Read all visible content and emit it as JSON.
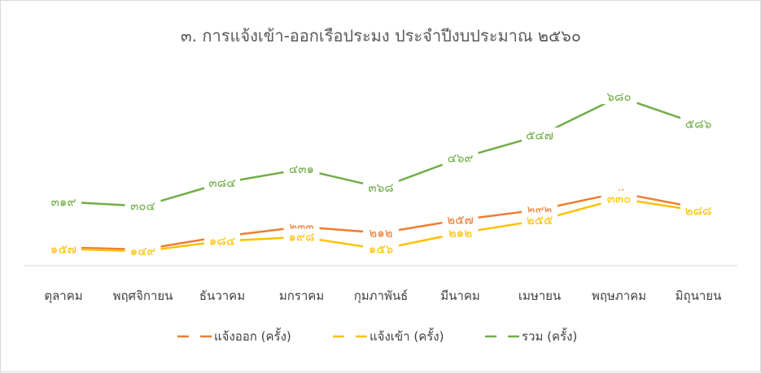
{
  "chart_data": {
    "type": "line",
    "title": "๓. การแจ้งเข้า-ออกเรือประมง ประจำปีงบประมาณ  ๒๕๖๐",
    "categories": [
      "ตุลาคม",
      "พฤศจิกายน",
      "ธันวาคม",
      "มกราคม",
      "กุมภาพันธ์",
      "มีนาคม",
      "เมษายน",
      "พฤษภาคม",
      "มิถุนายน"
    ],
    "series": [
      {
        "name": "แจ้งออก (ครั้ง)",
        "color": "#ed7d31",
        "values": [
          162,
          155,
          200,
          233,
          212,
          257,
          292,
          350,
          298
        ],
        "labels": [
          "๑๖๒",
          "๑๕๕",
          "๒๐๐",
          "๒๓๓",
          "๒๑๒",
          "๒๕๗",
          "๒๙๒",
          "๓๕๐",
          "๒๙๘"
        ]
      },
      {
        "name": "แจ้งเข้า (ครั้ง)",
        "color": "#ffc000",
        "values": [
          157,
          149,
          184,
          198,
          156,
          212,
          255,
          330,
          288
        ],
        "labels": [
          "๑๕๗",
          "๑๔๙",
          "๑๘๔",
          "๑๙๘",
          "๑๕๖",
          "๒๑๒",
          "๒๕๕",
          "๓๓๐",
          "๒๘๘"
        ]
      },
      {
        "name": "รวม (ครั้ง)",
        "color": "#70ad47",
        "values": [
          319,
          304,
          384,
          431,
          368,
          469,
          547,
          680,
          586
        ],
        "labels": [
          "๓๑๙",
          "๓๐๔",
          "๓๘๔",
          "๔๓๑",
          "๓๖๘",
          "๔๖๙",
          "๕๔๗",
          "๖๘๐",
          "๕๘๖"
        ]
      }
    ],
    "axis_color": "#d9d9d9",
    "grid": false,
    "legend_position": "bottom"
  }
}
